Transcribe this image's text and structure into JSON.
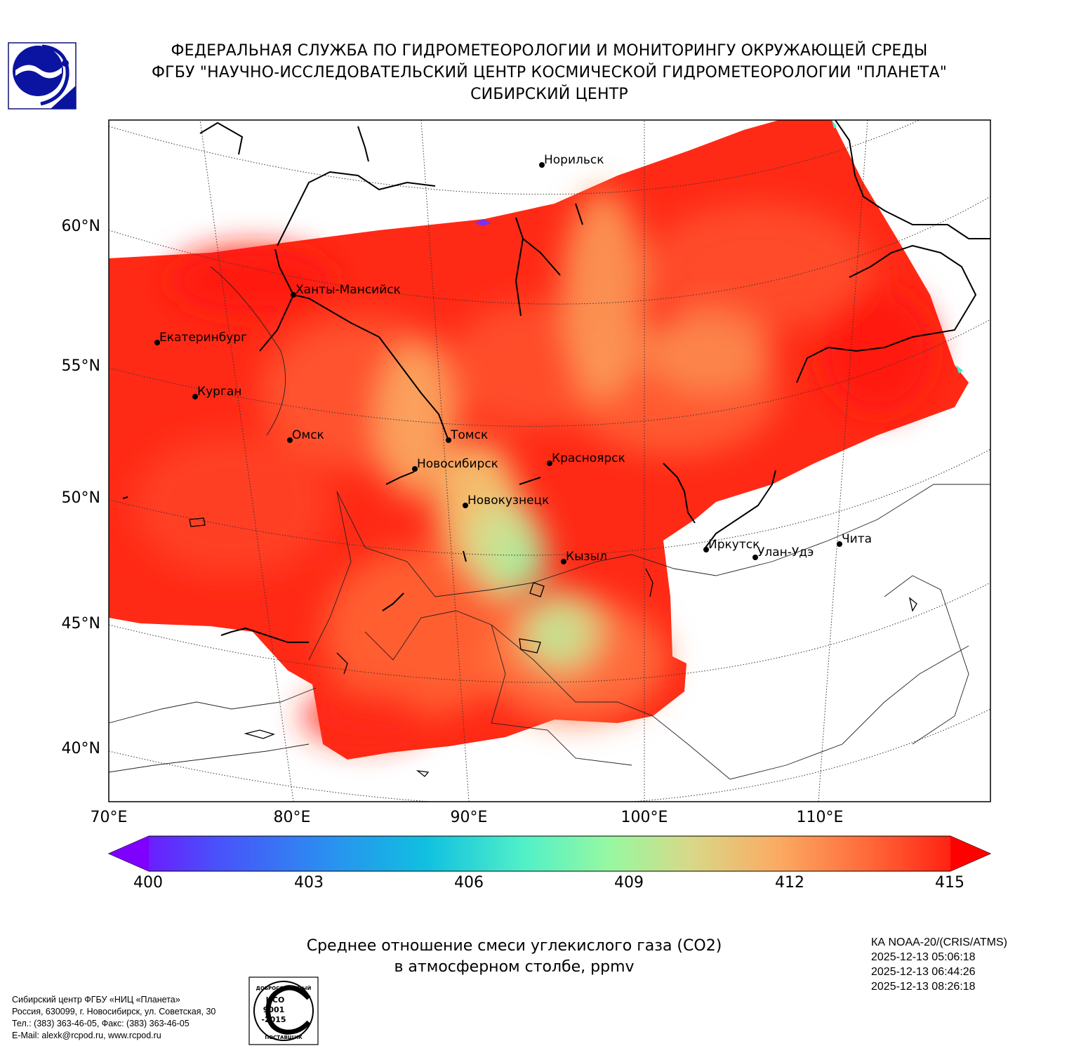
{
  "header": {
    "line1": "ФЕДЕРАЛЬНАЯ СЛУЖБА ПО ГИДРОМЕТЕОРОЛОГИИ И МОНИТОРИНГУ ОКРУЖАЮЩЕЙ СРЕДЫ",
    "line2": "ФГБУ \"НАУЧНО-ИССЛЕДОВАТЕЛЬСКИЙ ЦЕНТР КОСМИЧЕСКОЙ ГИДРОМЕТЕОРОЛОГИИ \"ПЛАНЕТА\"",
    "line3": "СИБИРСКИЙ ЦЕНТР"
  },
  "logos": {
    "agency": "roshydromet-logo",
    "iso": "iso-9001-badge"
  },
  "iso_badge_text": [
    "ДОБРОСОВЕСТНЫЙ",
    "ИСО",
    "9001",
    "-2015",
    "ПОСТАВЩИК"
  ],
  "map": {
    "lat_labels": [
      "60°N",
      "55°N",
      "50°N",
      "45°N",
      "40°N"
    ],
    "lon_labels": [
      "70°E",
      "80°E",
      "90°E",
      "100°E",
      "110°E"
    ],
    "cities": [
      {
        "name": "Норильск"
      },
      {
        "name": "Ханты-Мансийск"
      },
      {
        "name": "Екатеринбург"
      },
      {
        "name": "Курган"
      },
      {
        "name": "Омск"
      },
      {
        "name": "Томск"
      },
      {
        "name": "Новосибирск"
      },
      {
        "name": "Красноярск"
      },
      {
        "name": "Новокузнецк"
      },
      {
        "name": "Кызыл"
      },
      {
        "name": "Иркутск"
      },
      {
        "name": "Улан-Удэ"
      },
      {
        "name": "Чита"
      }
    ],
    "colors": {
      "max_red": "#ff1a0a",
      "mid_orange": "#ff6a3a",
      "light_orange": "#fbb068",
      "green": "#a8ec9c"
    }
  },
  "colorbar": {
    "min": 400,
    "max": 415,
    "ticks": [
      "400",
      "403",
      "406",
      "409",
      "412",
      "415"
    ],
    "colors": [
      "#7f00ff",
      "#4060f8",
      "#1ab8e8",
      "#40f0d0",
      "#98f8a0",
      "#d8d888",
      "#fba860",
      "#ff6a3a",
      "#ff0000"
    ]
  },
  "caption": {
    "line1": "Среднее отношение смеси углекислого газа (CO2)",
    "line2": "в атмосферном столбе, ppmv"
  },
  "satellite": {
    "name": "КА NOAA-20/(CRIS/ATMS)",
    "times": [
      "2025-12-13 05:06:18",
      "2025-12-13 06:44:26",
      "2025-12-13 08:26:18"
    ]
  },
  "contacts": [
    "Сибирский центр ФГБУ «НИЦ «Планета»",
    "Россия, 630099, г. Новосибирск, ул. Советская, 30",
    "Тел.: (383) 363-46-05, Факс: (383) 363-46-05",
    "E-Mail: alexk@rcpod.ru, www.rcpod.ru"
  ]
}
